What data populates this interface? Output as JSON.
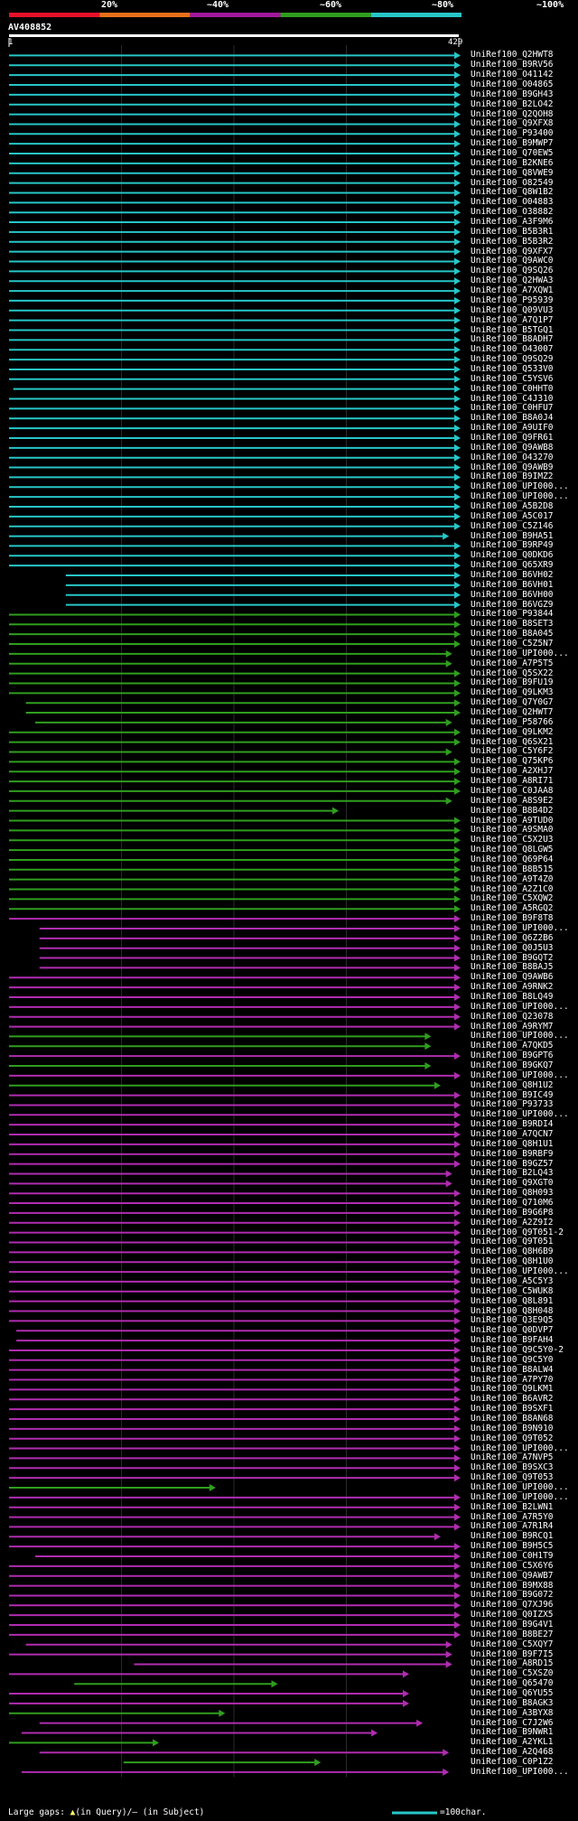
{
  "header": {
    "percent_labels": [
      "20%",
      "~40%",
      "~60%",
      "~80%",
      "~100%"
    ],
    "identity_bands": [
      {
        "color": "#e8102a"
      },
      {
        "color": "#e8701a"
      },
      {
        "color": "#a0189e"
      },
      {
        "color": "#2f9e1e"
      },
      {
        "color": "#27c6c8"
      }
    ],
    "query_name": "AV408852",
    "query_start": "1",
    "query_end": "429"
  },
  "colors": {
    "cyan": "#27c6c8",
    "green": "#2f9e1e",
    "magenta": "#b02cb0",
    "gap": "#ffff66"
  },
  "hits": [
    {
      "id": "UniRef100_Q2HWT8",
      "band": "cyan",
      "start": 1,
      "end": 429
    },
    {
      "id": "UniRef100_B9RV56",
      "band": "cyan",
      "start": 1,
      "end": 429
    },
    {
      "id": "UniRef100_O41142",
      "band": "cyan",
      "start": 1,
      "end": 429
    },
    {
      "id": "UniRef100_O04865",
      "band": "cyan",
      "start": 1,
      "end": 429
    },
    {
      "id": "UniRef100_B9GH43",
      "band": "cyan",
      "start": 1,
      "end": 429
    },
    {
      "id": "UniRef100_B2LO42",
      "band": "cyan",
      "start": 1,
      "end": 429
    },
    {
      "id": "UniRef100_Q2QOH8",
      "band": "cyan",
      "start": 1,
      "end": 429
    },
    {
      "id": "UniRef100_Q9XFX8",
      "band": "cyan",
      "start": 1,
      "end": 429
    },
    {
      "id": "UniRef100_P93400",
      "band": "cyan",
      "start": 1,
      "end": 429
    },
    {
      "id": "UniRef100_B9MWP7",
      "band": "cyan",
      "start": 1,
      "end": 429
    },
    {
      "id": "UniRef100_Q70EW5",
      "band": "cyan",
      "start": 1,
      "end": 429
    },
    {
      "id": "UniRef100_B2KNE6",
      "band": "cyan",
      "start": 1,
      "end": 429
    },
    {
      "id": "UniRef100_Q8VWE9",
      "band": "cyan",
      "start": 1,
      "end": 429
    },
    {
      "id": "UniRef100_O82549",
      "band": "cyan",
      "start": 1,
      "end": 429
    },
    {
      "id": "UniRef100_Q8W1B2",
      "band": "cyan",
      "start": 1,
      "end": 429
    },
    {
      "id": "UniRef100_O04883",
      "band": "cyan",
      "start": 1,
      "end": 429
    },
    {
      "id": "UniRef100_O38882",
      "band": "cyan",
      "start": 1,
      "end": 429
    },
    {
      "id": "UniRef100_A3F9M6",
      "band": "cyan",
      "start": 1,
      "end": 429
    },
    {
      "id": "UniRef100_B5B3R1",
      "band": "cyan",
      "start": 1,
      "end": 429
    },
    {
      "id": "UniRef100_B5B3R2",
      "band": "cyan",
      "start": 1,
      "end": 429
    },
    {
      "id": "UniRef100_Q9XFX7",
      "band": "cyan",
      "start": 1,
      "end": 429
    },
    {
      "id": "UniRef100_Q9AWC0",
      "band": "cyan",
      "start": 1,
      "end": 429
    },
    {
      "id": "UniRef100_Q9SQ26",
      "band": "cyan",
      "start": 1,
      "end": 429
    },
    {
      "id": "UniRef100_Q2HWA3",
      "band": "cyan",
      "start": 1,
      "end": 429
    },
    {
      "id": "UniRef100_A7XQW1",
      "band": "cyan",
      "start": 1,
      "end": 429
    },
    {
      "id": "UniRef100_P95939",
      "band": "cyan",
      "start": 1,
      "end": 429
    },
    {
      "id": "UniRef100_Q09VU3",
      "band": "cyan",
      "start": 1,
      "end": 429
    },
    {
      "id": "UniRef100_A7Q1P7",
      "band": "cyan",
      "start": 1,
      "end": 429
    },
    {
      "id": "UniRef100_B5TGQ1",
      "band": "cyan",
      "start": 1,
      "end": 429
    },
    {
      "id": "UniRef100_B8ADH7",
      "band": "cyan",
      "start": 1,
      "end": 429
    },
    {
      "id": "UniRef100_O43007",
      "band": "cyan",
      "start": 1,
      "end": 429
    },
    {
      "id": "UniRef100_Q9SQ29",
      "band": "cyan",
      "start": 1,
      "end": 429
    },
    {
      "id": "UniRef100_Q533V0",
      "band": "cyan",
      "start": 1,
      "end": 429
    },
    {
      "id": "UniRef100_C5YSV6",
      "band": "cyan",
      "start": 1,
      "end": 429
    },
    {
      "id": "UniRef100_C0HHT0",
      "band": "cyan",
      "start": 5,
      "end": 429
    },
    {
      "id": "UniRef100_C4J310",
      "band": "cyan",
      "start": 1,
      "end": 429
    },
    {
      "id": "UniRef100_C0HFU7",
      "band": "cyan",
      "start": 1,
      "end": 429
    },
    {
      "id": "UniRef100_B8A0J4",
      "band": "cyan",
      "start": 1,
      "end": 429
    },
    {
      "id": "UniRef100_A9UIF0",
      "band": "cyan",
      "start": 1,
      "end": 429
    },
    {
      "id": "UniRef100_Q9FR61",
      "band": "cyan",
      "start": 1,
      "end": 429
    },
    {
      "id": "UniRef100_Q9AWB8",
      "band": "cyan",
      "start": 1,
      "end": 429
    },
    {
      "id": "UniRef100_O43270",
      "band": "cyan",
      "start": 1,
      "end": 429
    },
    {
      "id": "UniRef100_Q9AWB9",
      "band": "cyan",
      "start": 1,
      "end": 429
    },
    {
      "id": "UniRef100_B9IMZ2",
      "band": "cyan",
      "start": 1,
      "end": 429
    },
    {
      "id": "UniRef100_UPI000...",
      "band": "cyan",
      "start": 1,
      "end": 429
    },
    {
      "id": "UniRef100_UPI000...",
      "band": "cyan",
      "start": 1,
      "end": 429
    },
    {
      "id": "UniRef100_A5B2D8",
      "band": "cyan",
      "start": 1,
      "end": 429
    },
    {
      "id": "UniRef100_A5C017",
      "band": "cyan",
      "start": 1,
      "end": 429
    },
    {
      "id": "UniRef100_C5Z146",
      "band": "cyan",
      "start": 1,
      "end": 429
    },
    {
      "id": "UniRef100_B9HA51",
      "band": "cyan",
      "start": 1,
      "end": 418
    },
    {
      "id": "UniRef100_B9RP49",
      "band": "cyan",
      "start": 1,
      "end": 429
    },
    {
      "id": "UniRef100_Q0DKD6",
      "band": "cyan",
      "start": 1,
      "end": 429
    },
    {
      "id": "UniRef100_Q65XR9",
      "band": "cyan",
      "start": 1,
      "end": 429
    },
    {
      "id": "UniRef100_B6VH02",
      "band": "cyan",
      "start": 55,
      "end": 429
    },
    {
      "id": "UniRef100_B6VH01",
      "band": "cyan",
      "start": 55,
      "end": 429
    },
    {
      "id": "UniRef100_B6VH00",
      "band": "cyan",
      "start": 55,
      "end": 429
    },
    {
      "id": "UniRef100_B6VGZ9",
      "band": "cyan",
      "start": 55,
      "end": 429
    },
    {
      "id": "UniRef100_P93844",
      "band": "green",
      "start": 1,
      "end": 429
    },
    {
      "id": "UniRef100_B8SET3",
      "band": "green",
      "start": 1,
      "end": 429
    },
    {
      "id": "UniRef100_B8A045",
      "band": "green",
      "start": 1,
      "end": 429
    },
    {
      "id": "UniRef100_C5Z5N7",
      "band": "green",
      "start": 1,
      "end": 429
    },
    {
      "id": "UniRef100_UPI000...",
      "band": "green",
      "start": 1,
      "end": 421
    },
    {
      "id": "UniRef100_A7P5T5",
      "band": "green",
      "start": 1,
      "end": 421
    },
    {
      "id": "UniRef100_Q5SX22",
      "band": "green",
      "start": 1,
      "end": 429
    },
    {
      "id": "UniRef100_B9FU19",
      "band": "green",
      "start": 1,
      "end": 429
    },
    {
      "id": "UniRef100_Q9LKM3",
      "band": "green",
      "start": 1,
      "end": 429
    },
    {
      "id": "UniRef100_Q7Y0G7",
      "band": "green",
      "start": 17,
      "end": 429
    },
    {
      "id": "UniRef100_Q2HWT7",
      "band": "green",
      "start": 17,
      "end": 429
    },
    {
      "id": "UniRef100_P58766",
      "band": "green",
      "start": 26,
      "end": 421
    },
    {
      "id": "UniRef100_Q9LKM2",
      "band": "green",
      "start": 1,
      "end": 429
    },
    {
      "id": "UniRef100_Q6SX21",
      "band": "green",
      "start": 1,
      "end": 429
    },
    {
      "id": "UniRef100_C5Y6F2",
      "band": "green",
      "start": 1,
      "end": 421
    },
    {
      "id": "UniRef100_Q75KP6",
      "band": "green",
      "start": 1,
      "end": 429
    },
    {
      "id": "UniRef100_A2XHJ7",
      "band": "green",
      "start": 1,
      "end": 429
    },
    {
      "id": "UniRef100_A8RI71",
      "band": "green",
      "start": 1,
      "end": 429
    },
    {
      "id": "UniRef100_C0JAA8",
      "band": "green",
      "start": 1,
      "end": 429
    },
    {
      "id": "UniRef100_A8S9E2",
      "band": "green",
      "start": 1,
      "end": 421
    },
    {
      "id": "UniRef100_B8B4D2",
      "band": "green",
      "start": 1,
      "end": 313
    },
    {
      "id": "UniRef100_A9TUD0",
      "band": "green",
      "start": 1,
      "end": 429
    },
    {
      "id": "UniRef100_A9SMA0",
      "band": "green",
      "start": 1,
      "end": 429
    },
    {
      "id": "UniRef100_C5X2U3",
      "band": "green",
      "start": 1,
      "end": 429
    },
    {
      "id": "UniRef100_Q8LGW5",
      "band": "green",
      "start": 1,
      "end": 429
    },
    {
      "id": "UniRef100_Q69P64",
      "band": "green",
      "start": 1,
      "end": 429
    },
    {
      "id": "UniRef100_B8B515",
      "band": "green",
      "start": 1,
      "end": 429
    },
    {
      "id": "UniRef100_A9T4Z0",
      "band": "green",
      "start": 1,
      "end": 429
    },
    {
      "id": "UniRef100_A2Z1C0",
      "band": "green",
      "start": 1,
      "end": 429
    },
    {
      "id": "UniRef100_C5XQW2",
      "band": "green",
      "start": 1,
      "end": 429
    },
    {
      "id": "UniRef100_A5RGQ2",
      "band": "green",
      "start": 1,
      "end": 429
    },
    {
      "id": "UniRef100_B9F8T8",
      "band": "magenta",
      "start": 1,
      "end": 429
    },
    {
      "id": "UniRef100_UPI000...",
      "band": "magenta",
      "start": 30,
      "end": 429
    },
    {
      "id": "UniRef100_Q6Z2B6",
      "band": "magenta",
      "start": 30,
      "end": 429
    },
    {
      "id": "UniRef100_Q0J5U3",
      "band": "magenta",
      "start": 30,
      "end": 429
    },
    {
      "id": "UniRef100_B9GQT2",
      "band": "magenta",
      "start": 30,
      "end": 429
    },
    {
      "id": "UniRef100_B8BAJ5",
      "band": "magenta",
      "start": 30,
      "end": 429
    },
    {
      "id": "UniRef100_Q9AWB6",
      "band": "magenta",
      "start": 1,
      "end": 429
    },
    {
      "id": "UniRef100_A9RNK2",
      "band": "magenta",
      "start": 1,
      "end": 429
    },
    {
      "id": "UniRef100_B8LQ49",
      "band": "magenta",
      "start": 1,
      "end": 429
    },
    {
      "id": "UniRef100_UPI000...",
      "band": "magenta",
      "start": 1,
      "end": 429
    },
    {
      "id": "UniRef100_Q23078",
      "band": "magenta",
      "start": 1,
      "end": 429
    },
    {
      "id": "UniRef100_A9RYM7",
      "band": "magenta",
      "start": 1,
      "end": 429
    },
    {
      "id": "UniRef100_UPI000...",
      "band": "green",
      "start": 1,
      "end": 401
    },
    {
      "id": "UniRef100_A7QKD5",
      "band": "green",
      "start": 1,
      "end": 401
    },
    {
      "id": "UniRef100_B9GPT6",
      "band": "magenta",
      "start": 1,
      "end": 429
    },
    {
      "id": "UniRef100_B9GKQ7",
      "band": "green",
      "start": 1,
      "end": 401
    },
    {
      "id": "UniRef100_UPI000...",
      "band": "magenta",
      "start": 1,
      "end": 429
    },
    {
      "id": "UniRef100_Q8H1U2",
      "band": "green",
      "start": 1,
      "end": 410
    },
    {
      "id": "UniRef100_B9IC49",
      "band": "magenta",
      "start": 1,
      "end": 429
    },
    {
      "id": "UniRef100_P93733",
      "band": "magenta",
      "start": 1,
      "end": 429
    },
    {
      "id": "UniRef100_UPI000...",
      "band": "magenta",
      "start": 1,
      "end": 429
    },
    {
      "id": "UniRef100_B9RDI4",
      "band": "magenta",
      "start": 1,
      "end": 429
    },
    {
      "id": "UniRef100_A7QCN7",
      "band": "magenta",
      "start": 1,
      "end": 429
    },
    {
      "id": "UniRef100_Q8H1U1",
      "band": "magenta",
      "start": 1,
      "end": 429
    },
    {
      "id": "UniRef100_B9RBF9",
      "band": "magenta",
      "start": 1,
      "end": 429
    },
    {
      "id": "UniRef100_B9GZ57",
      "band": "magenta",
      "start": 1,
      "end": 429
    },
    {
      "id": "UniRef100_B2LQ43",
      "band": "magenta",
      "start": 1,
      "end": 421
    },
    {
      "id": "UniRef100_Q9XGT0",
      "band": "magenta",
      "start": 1,
      "end": 421
    },
    {
      "id": "UniRef100_Q8H093",
      "band": "magenta",
      "start": 1,
      "end": 429
    },
    {
      "id": "UniRef100_Q710M6",
      "band": "magenta",
      "start": 1,
      "end": 429
    },
    {
      "id": "UniRef100_B9G6P8",
      "band": "magenta",
      "start": 1,
      "end": 429
    },
    {
      "id": "UniRef100_A2Z9I2",
      "band": "magenta",
      "start": 1,
      "end": 429
    },
    {
      "id": "UniRef100_Q9T051-2",
      "band": "magenta",
      "start": 1,
      "end": 429
    },
    {
      "id": "UniRef100_Q9T051",
      "band": "magenta",
      "start": 1,
      "end": 429
    },
    {
      "id": "UniRef100_Q8H6B9",
      "band": "magenta",
      "start": 1,
      "end": 429
    },
    {
      "id": "UniRef100_Q8H1U0",
      "band": "magenta",
      "start": 1,
      "end": 429
    },
    {
      "id": "UniRef100_UPI000...",
      "band": "magenta",
      "start": 1,
      "end": 429
    },
    {
      "id": "UniRef100_A5C5Y3",
      "band": "magenta",
      "start": 1,
      "end": 429
    },
    {
      "id": "UniRef100_C5WUK8",
      "band": "magenta",
      "start": 1,
      "end": 429
    },
    {
      "id": "UniRef100_Q8L891",
      "band": "magenta",
      "start": 1,
      "end": 429
    },
    {
      "id": "UniRef100_Q8H048",
      "band": "magenta",
      "start": 1,
      "end": 429
    },
    {
      "id": "UniRef100_Q3E9Q5",
      "band": "magenta",
      "start": 1,
      "end": 429
    },
    {
      "id": "UniRef100_Q0DVP7",
      "band": "magenta",
      "start": 8,
      "end": 429
    },
    {
      "id": "UniRef100_B9FAH4",
      "band": "magenta",
      "start": 8,
      "end": 429
    },
    {
      "id": "UniRef100_Q9C5Y0-2",
      "band": "magenta",
      "start": 1,
      "end": 429
    },
    {
      "id": "UniRef100_Q9C5Y0",
      "band": "magenta",
      "start": 1,
      "end": 429
    },
    {
      "id": "UniRef100_B8ALW4",
      "band": "magenta",
      "start": 1,
      "end": 429
    },
    {
      "id": "UniRef100_A7PY70",
      "band": "magenta",
      "start": 1,
      "end": 429
    },
    {
      "id": "UniRef100_Q9LKM1",
      "band": "magenta",
      "start": 1,
      "end": 429
    },
    {
      "id": "UniRef100_B6AVR2",
      "band": "magenta",
      "start": 1,
      "end": 429
    },
    {
      "id": "UniRef100_B9SXF1",
      "band": "magenta",
      "start": 1,
      "end": 429
    },
    {
      "id": "UniRef100_B8AN68",
      "band": "magenta",
      "start": 1,
      "end": 429
    },
    {
      "id": "UniRef100_B9N910",
      "band": "magenta",
      "start": 1,
      "end": 429
    },
    {
      "id": "UniRef100_Q9T052",
      "band": "magenta",
      "start": 1,
      "end": 429
    },
    {
      "id": "UniRef100_UPI000...",
      "band": "magenta",
      "start": 1,
      "end": 429
    },
    {
      "id": "UniRef100_A7NVP5",
      "band": "magenta",
      "start": 1,
      "end": 429
    },
    {
      "id": "UniRef100_B9SXC3",
      "band": "magenta",
      "start": 1,
      "end": 429
    },
    {
      "id": "UniRef100_Q9T053",
      "band": "magenta",
      "start": 1,
      "end": 429
    },
    {
      "id": "UniRef100_UPI000...",
      "band": "green",
      "start": 1,
      "end": 196
    },
    {
      "id": "UniRef100_UPI000...",
      "band": "magenta",
      "start": 1,
      "end": 429
    },
    {
      "id": "UniRef100_B2LWN1",
      "band": "magenta",
      "start": 1,
      "end": 429
    },
    {
      "id": "UniRef100_A7R5Y0",
      "band": "magenta",
      "start": 1,
      "end": 429
    },
    {
      "id": "UniRef100_A7R1R4",
      "band": "magenta",
      "start": 1,
      "end": 429
    },
    {
      "id": "UniRef100_B9RCQ1",
      "band": "magenta",
      "start": 1,
      "end": 410
    },
    {
      "id": "UniRef100_B9H5C5",
      "band": "magenta",
      "start": 1,
      "end": 429
    },
    {
      "id": "UniRef100_C0H1T9",
      "band": "magenta",
      "start": 26,
      "end": 429
    },
    {
      "id": "UniRef100_C5X6Y6",
      "band": "magenta",
      "start": 1,
      "end": 429
    },
    {
      "id": "UniRef100_Q9AWB7",
      "band": "magenta",
      "start": 1,
      "end": 429
    },
    {
      "id": "UniRef100_B9MX88",
      "band": "magenta",
      "start": 1,
      "end": 429
    },
    {
      "id": "UniRef100_B9G072",
      "band": "magenta",
      "start": 1,
      "end": 429
    },
    {
      "id": "UniRef100_Q7XJ96",
      "band": "magenta",
      "start": 1,
      "end": 429
    },
    {
      "id": "UniRef100_Q0IZX5",
      "band": "magenta",
      "start": 1,
      "end": 429
    },
    {
      "id": "UniRef100_B9G4V1",
      "band": "magenta",
      "start": 1,
      "end": 429
    },
    {
      "id": "UniRef100_B8BE27",
      "band": "magenta",
      "start": 1,
      "end": 429
    },
    {
      "id": "UniRef100_C5XQY7",
      "band": "magenta",
      "start": 17,
      "end": 421
    },
    {
      "id": "UniRef100_B9F7I5",
      "band": "magenta",
      "start": 1,
      "end": 421
    },
    {
      "id": "UniRef100_A8RD15",
      "band": "magenta",
      "start": 120,
      "end": 421
    },
    {
      "id": "UniRef100_C5XSZ0",
      "band": "magenta",
      "start": 1,
      "end": 380
    },
    {
      "id": "UniRef100_Q65470",
      "band": "green",
      "start": 63,
      "end": 255
    },
    {
      "id": "UniRef100_Q6YU55",
      "band": "magenta",
      "start": 1,
      "end": 380
    },
    {
      "id": "UniRef100_B8AGK3",
      "band": "magenta",
      "start": 1,
      "end": 380
    },
    {
      "id": "UniRef100_A3BYX8",
      "band": "green",
      "start": 1,
      "end": 205
    },
    {
      "id": "UniRef100_C7J2W6",
      "band": "magenta",
      "start": 30,
      "end": 393
    },
    {
      "id": "UniRef100_B9NWR1",
      "band": "magenta",
      "start": 13,
      "end": 350
    },
    {
      "id": "UniRef100_A2YKL1",
      "band": "green",
      "start": 1,
      "end": 142
    },
    {
      "id": "UniRef100_A2Q468",
      "band": "magenta",
      "start": 30,
      "end": 418
    },
    {
      "id": "UniRef100_C0P1Z2",
      "band": "green",
      "start": 110,
      "end": 296
    },
    {
      "id": "UniRef100_UPI000...",
      "band": "magenta",
      "start": 13,
      "end": 418
    }
  ],
  "footer": {
    "legend_text": "Large gaps:",
    "legend_symbol": "▲",
    "legend_query": "(in Query)/",
    "legend_subject": "– (in Subject)",
    "scale_label": "=100char."
  }
}
